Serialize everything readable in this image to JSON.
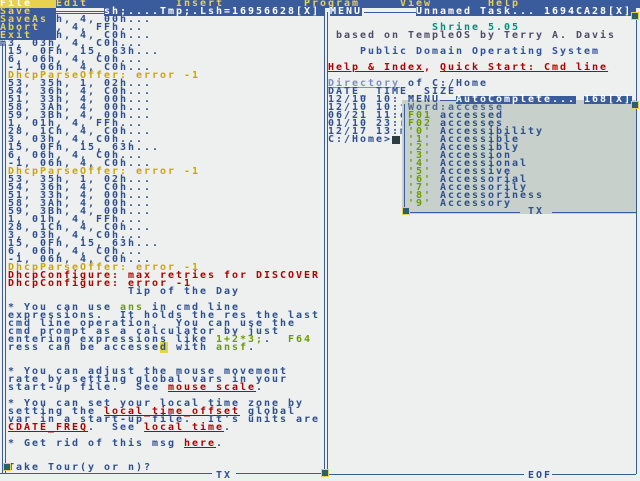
{
  "menubar": {
    "items": [
      "File",
      "Edit",
      "Insert",
      "Program",
      "View",
      "Help"
    ],
    "file_menu": [
      "Save",
      "SaveAs",
      "Abort",
      "Exit"
    ]
  },
  "left_window": {
    "title": "sh;....Tmp;.Lsh=16956628[X]",
    "log": [
      "h, 4, 00h...",
      ", 4, FFh...",
      "h, 4, C0h...",
      "m3, 03h, 4, C0h...",
      "15, 0Fh, 15, 63h...",
      "6, 06h, 4, C0h...",
      "-1, 06h, 4, C0h...",
      "DhcpParseOffer: error -1",
      "53, 35h, 1, 02h...",
      "54, 36h, 4, C0h...",
      "51, 33h, 4, 00h...",
      "58, 3Ah, 4, 00h...",
      "59, 3Bh, 4, 00h...",
      "1, 01h, 4, FFh...",
      "28, 1Ch, 4, C0h...",
      "3, 03h, 4, C0h...",
      "15, 0Fh, 15, 63h...",
      "6, 06h, 4, C0h...",
      "-1, 06h, 4, C0h...",
      "DhcpParseOffer: error -1",
      "53, 35h, 1, 02h...",
      "54, 36h, 4, C0h...",
      "51, 33h, 4, 00h...",
      "58, 3Ah, 4, 00h...",
      "59, 3Bh, 4, 00h...",
      "1, 01h, 4, FFh...",
      "28, 1Ch, 4, C0h...",
      "3, 03h, 4, C0h...",
      "15, 0Fh, 15, 63h...",
      "6, 06h, 4, C0h...",
      "-1, 06h, 4, C0h...",
      "DhcpParseOffer: error -1",
      "DhcpConfigure: max retries for DISCOVER",
      "DhcpConfigure: error -1"
    ],
    "tip": {
      "heading": "Tip of the Day",
      "t1a": "* You can use ",
      "t1b": "ans",
      "t1c": " in cmd line",
      "t2": "expressions.  It holds the res the last",
      "t3": "cmd line operation.  You can use the",
      "t4a": "cmd prompt as a calculator by just",
      "t5a": "entering expressions like ",
      "t5b": "1+2*3;",
      "t5c": ".  ",
      "t5d": "F64",
      "t6a": "ress can be accesse",
      "t6b": "d",
      "t6c": " with ",
      "t6d": "ansf",
      "t6e": ".",
      "m1": "* You can adjust the mouse movement",
      "m2": "rate by setting global vars in your",
      "m3a": "start-up file.  See ",
      "m3b": "mouse scale",
      "m3c": ".",
      "z1": "* You can set your local time zone by",
      "z2a": "setting the ",
      "z2b": "local_time_offset",
      "z2c": " global",
      "z3": "var in a start-up file.  It's units are",
      "z4a": "CDATE_FREQ",
      "z4b": ".  See ",
      "z4c": "local time",
      "z4d": ".",
      "g1a": "* Get rid of this msg ",
      "g1b": "here",
      "g1c": ".",
      "prompt": "Take Tour(y or n)?"
    },
    "footer": "TX"
  },
  "right_window": {
    "menu_label": "MENU",
    "title": "Unnamed Task...",
    "title_id": "1694CA28[X]",
    "shrine": "Shrine 5.05",
    "based": "based on TempleOS by Terry A. Davis",
    "public": "Public Domain Operating System",
    "help_link": "Help & Index",
    "comma": ", ",
    "quick_link": "Quick Start: Cmd line",
    "dir_link": "Directory",
    "dir_of": " of C:/Home",
    "dir_header": "DATE_ TIME_ SIZE",
    "dir_rows": [
      "12/10 10:",
      "12/10 10:f",
      "06/21 11:e",
      "01/10 23:r",
      "12/17 13:m"
    ],
    "prompt": "C:/Home>",
    "footer": "EOF"
  },
  "autocomplete": {
    "menu_label": "MENU",
    "title": "AutoComplete...",
    "title_id": "168[X]",
    "word_label": "Word:accesse",
    "items": [
      {
        "key": "F01",
        "word": "accessed"
      },
      {
        "key": "F02",
        "word": "accesses"
      },
      {
        "key": "'0'",
        "word": "Accessibility"
      },
      {
        "key": "'1'",
        "word": "Accessible"
      },
      {
        "key": "'2'",
        "word": "Accessibly"
      },
      {
        "key": "'3'",
        "word": "Accession"
      },
      {
        "key": "'4'",
        "word": "Accessional"
      },
      {
        "key": "'5'",
        "word": "Accessive"
      },
      {
        "key": "'6'",
        "word": "Accessorial"
      },
      {
        "key": "'7'",
        "word": "Accessorily"
      },
      {
        "key": "'8'",
        "word": "Accessoriness"
      },
      {
        "key": "'9'",
        "word": "Accessory"
      }
    ],
    "footer": "TX"
  },
  "colors": {
    "bg": "#eef0f0",
    "blue": "#3b5c9c",
    "yellow": "#e8d050",
    "red": "#b00000",
    "green": "#6a9c00"
  }
}
